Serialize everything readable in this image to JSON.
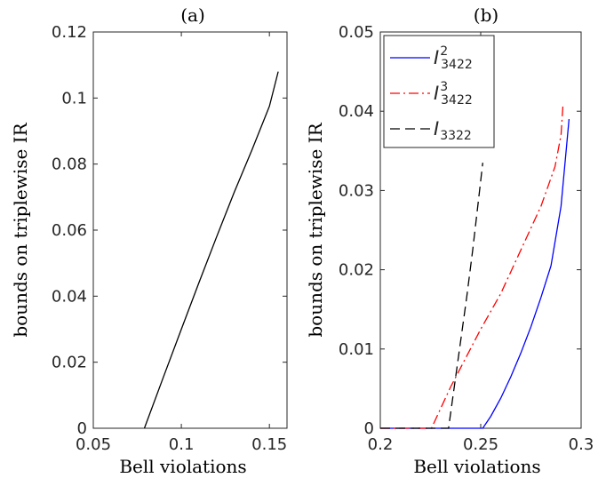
{
  "chart_data": [
    {
      "type": "line",
      "title": "(a)",
      "xlabel": "Bell violations",
      "ylabel": "bounds on triplewise IR",
      "xlim": [
        0.05,
        0.16
      ],
      "ylim": [
        0,
        0.12
      ],
      "xticks": [
        0.05,
        0.1,
        0.15
      ],
      "xtick_labels": [
        "0.05",
        "0.1",
        "0.15"
      ],
      "yticks": [
        0,
        0.02,
        0.04,
        0.06,
        0.08,
        0.1,
        0.12
      ],
      "ytick_labels": [
        "0",
        "0.02",
        "0.04",
        "0.06",
        "0.08",
        "0.1",
        "0.12"
      ],
      "grid": false,
      "series": [
        {
          "color": "#000000",
          "style": "solid",
          "x": [
            0.079,
            0.09,
            0.1,
            0.11,
            0.12,
            0.13,
            0.14,
            0.15,
            0.155
          ],
          "y": [
            0.0,
            0.0158,
            0.03,
            0.0441,
            0.0579,
            0.0714,
            0.0842,
            0.0975,
            0.108
          ]
        }
      ]
    },
    {
      "type": "line",
      "title": "(b)",
      "xlabel": "Bell violations",
      "ylabel": "bounds on triplewise IR",
      "xlim": [
        0.2,
        0.3
      ],
      "ylim": [
        0,
        0.05
      ],
      "xticks": [
        0.2,
        0.25,
        0.3
      ],
      "xtick_labels": [
        "0.2",
        "0.25",
        "0.3"
      ],
      "yticks": [
        0,
        0.01,
        0.02,
        0.03,
        0.04,
        0.05
      ],
      "ytick_labels": [
        "0",
        "0.01",
        "0.02",
        "0.03",
        "0.04",
        "0.05"
      ],
      "grid": false,
      "legend_position": "top-left",
      "series": [
        {
          "name": "I^2_3422",
          "legend": {
            "base": "I",
            "sup": "2",
            "sub": "3422"
          },
          "color": "#0000ff",
          "style": "solid",
          "x": [
            0.2,
            0.251,
            0.255,
            0.26,
            0.265,
            0.27,
            0.275,
            0.28,
            0.285,
            0.29,
            0.294
          ],
          "y": [
            0.0,
            0.0,
            0.0015,
            0.0038,
            0.0065,
            0.0095,
            0.0128,
            0.0165,
            0.0205,
            0.028,
            0.039
          ]
        },
        {
          "name": "I^3_3422",
          "legend": {
            "base": "I",
            "sup": "3",
            "sub": "3422"
          },
          "color": "#ff0000",
          "style": "dashdot",
          "x": [
            0.2,
            0.2255,
            0.235,
            0.25,
            0.26,
            0.27,
            0.28,
            0.287,
            0.29,
            0.291
          ],
          "y": [
            0.0,
            0.0,
            0.0052,
            0.0125,
            0.017,
            0.0225,
            0.028,
            0.033,
            0.037,
            0.041
          ]
        },
        {
          "name": "I_3322",
          "legend": {
            "base": "I",
            "sup": "",
            "sub": "3322"
          },
          "color": "#000000",
          "style": "dashed",
          "x": [
            0.2,
            0.234,
            0.237,
            0.24,
            0.243,
            0.246,
            0.249,
            0.251
          ],
          "y": [
            0.0,
            0.0,
            0.0055,
            0.011,
            0.0165,
            0.0225,
            0.029,
            0.0335
          ]
        }
      ]
    }
  ]
}
